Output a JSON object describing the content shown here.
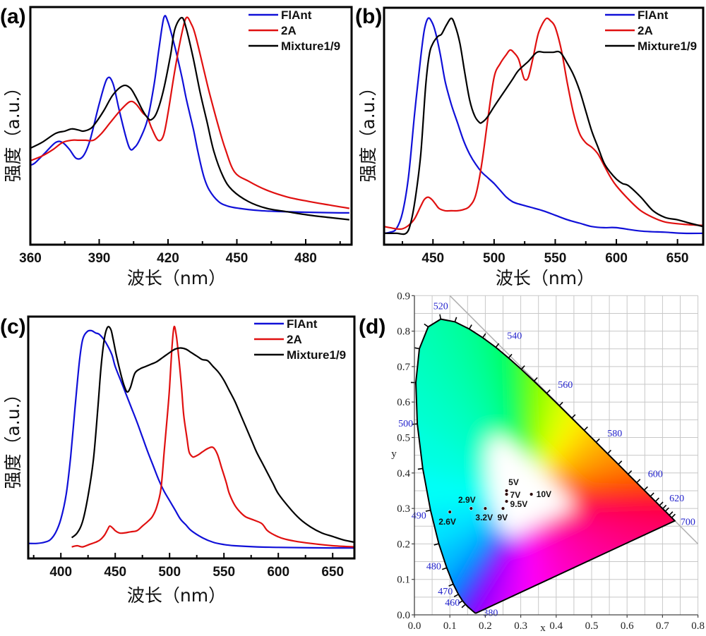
{
  "chart_data": [
    {
      "id": "a",
      "panel_label": "(a)",
      "type": "line",
      "title": "",
      "xlabel": "波长（nm）",
      "ylabel": "强度（a.u.）",
      "xlim": [
        360,
        500
      ],
      "ylim": [
        0,
        1.05
      ],
      "xticks": [
        360,
        390,
        420,
        450,
        480
      ],
      "xminor_step": 15,
      "yticks": [],
      "grid": false,
      "legend_position": "top-right",
      "series": [
        {
          "name": "FlAnt",
          "color": "#1010d8",
          "x": [
            360,
            362,
            366,
            371,
            374,
            377,
            380,
            383,
            386,
            390,
            393.4,
            396,
            399,
            403,
            405.6,
            408,
            411,
            414,
            416,
            418.2,
            420,
            423,
            426,
            428,
            431,
            433,
            435.6,
            438,
            442,
            446,
            451,
            460,
            469,
            480,
            490,
            499
          ],
          "y": [
            0.35,
            0.36,
            0.4,
            0.45,
            0.45,
            0.42,
            0.38,
            0.39,
            0.46,
            0.62,
            0.73,
            0.71,
            0.58,
            0.43,
            0.43,
            0.47,
            0.55,
            0.71,
            0.86,
            1.0,
            0.98,
            0.87,
            0.74,
            0.64,
            0.51,
            0.41,
            0.3,
            0.24,
            0.19,
            0.17,
            0.16,
            0.15,
            0.146,
            0.143,
            0.141,
            0.14
          ]
        },
        {
          "name": "2A",
          "color": "#e01010",
          "x": [
            360,
            365,
            370,
            374,
            378,
            381,
            384,
            387.5,
            391,
            395,
            400,
            403.5,
            406,
            409,
            411,
            413,
            415.7,
            418,
            420,
            423,
            426,
            428,
            430,
            432,
            435.6,
            438,
            442,
            445,
            449,
            455,
            463,
            472,
            481.5,
            490,
            499
          ],
          "y": [
            0.37,
            0.39,
            0.42,
            0.45,
            0.46,
            0.46,
            0.46,
            0.46,
            0.49,
            0.54,
            0.6,
            0.63,
            0.62,
            0.58,
            0.56,
            0.51,
            0.46,
            0.48,
            0.58,
            0.77,
            0.93,
            1.0,
            0.975,
            0.92,
            0.77,
            0.67,
            0.52,
            0.42,
            0.32,
            0.28,
            0.24,
            0.21,
            0.19,
            0.175,
            0.16
          ]
        },
        {
          "name": "Mixture1/9",
          "color": "#000000",
          "x": [
            360,
            365,
            371,
            375,
            378,
            381,
            383,
            386,
            388,
            392,
            396,
            400.4,
            403.5,
            406,
            409,
            411,
            412.6,
            415,
            418,
            421,
            423,
            426,
            428,
            431,
            434,
            437,
            440,
            444,
            448,
            455,
            463,
            472,
            481.5,
            490,
            499
          ],
          "y": [
            0.425,
            0.45,
            0.49,
            0.5,
            0.51,
            0.505,
            0.5,
            0.51,
            0.53,
            0.59,
            0.66,
            0.7,
            0.69,
            0.65,
            0.59,
            0.56,
            0.55,
            0.58,
            0.68,
            0.83,
            0.95,
            1.0,
            0.95,
            0.82,
            0.67,
            0.54,
            0.41,
            0.3,
            0.24,
            0.19,
            0.16,
            0.145,
            0.13,
            0.12,
            0.11
          ]
        }
      ]
    },
    {
      "id": "b",
      "panel_label": "(b)",
      "type": "line",
      "title": "",
      "xlabel": "波长（nm）",
      "ylabel": "强度（a.u.）",
      "xlim": [
        410,
        671
      ],
      "ylim": [
        0,
        1.05
      ],
      "xticks": [
        450,
        500,
        550,
        600,
        650
      ],
      "xminor_step": 25,
      "yticks": [],
      "grid": false,
      "legend_position": "top-right",
      "series": [
        {
          "name": "FlAnt",
          "color": "#1010d8",
          "x": [
            410,
            415,
            420,
            425,
            430,
            435,
            440,
            443,
            446,
            449,
            452,
            456,
            460,
            465,
            470,
            475,
            480,
            485,
            490,
            495,
            500,
            505,
            510,
            515,
            520,
            530,
            540,
            550,
            560,
            570,
            580,
            590,
            600,
            620,
            640,
            655,
            671
          ],
          "y": [
            0.05,
            0.055,
            0.07,
            0.14,
            0.3,
            0.58,
            0.83,
            0.95,
            1.0,
            0.985,
            0.94,
            0.84,
            0.72,
            0.62,
            0.54,
            0.46,
            0.4,
            0.355,
            0.32,
            0.295,
            0.27,
            0.24,
            0.21,
            0.19,
            0.18,
            0.165,
            0.15,
            0.13,
            0.11,
            0.095,
            0.08,
            0.075,
            0.075,
            0.06,
            0.055,
            0.05,
            0.05
          ]
        },
        {
          "name": "2A",
          "color": "#e01010",
          "x": [
            410,
            415,
            420,
            425,
            430,
            435,
            440,
            443,
            446,
            449,
            452,
            455,
            460,
            465,
            470,
            475,
            480,
            485,
            490,
            495,
            500,
            505,
            510,
            513,
            516,
            520,
            523,
            525,
            528,
            532,
            536,
            540,
            543,
            546,
            550,
            555,
            560,
            565,
            570,
            575,
            580,
            585,
            590,
            595,
            600,
            610,
            620,
            630,
            640,
            655,
            671
          ],
          "y": [
            0.08,
            0.075,
            0.07,
            0.07,
            0.085,
            0.115,
            0.17,
            0.2,
            0.21,
            0.2,
            0.18,
            0.16,
            0.15,
            0.15,
            0.15,
            0.155,
            0.17,
            0.22,
            0.36,
            0.56,
            0.74,
            0.8,
            0.84,
            0.86,
            0.85,
            0.82,
            0.76,
            0.73,
            0.74,
            0.83,
            0.93,
            0.98,
            1.0,
            0.99,
            0.96,
            0.86,
            0.71,
            0.58,
            0.49,
            0.45,
            0.43,
            0.4,
            0.35,
            0.3,
            0.26,
            0.2,
            0.15,
            0.12,
            0.1,
            0.09,
            0.085
          ]
        },
        {
          "name": "Mixture1/9",
          "color": "#000000",
          "x": [
            410,
            420,
            428,
            432,
            436,
            440,
            444,
            447,
            450,
            454,
            457,
            461,
            465,
            468,
            472,
            476,
            480,
            484,
            488,
            490,
            494,
            500,
            505,
            510,
            515,
            520,
            528,
            535,
            541,
            548,
            554,
            560,
            565,
            570,
            575,
            580,
            585,
            590,
            595,
            600,
            605,
            610,
            620,
            630,
            640,
            650,
            660,
            671
          ],
          "y": [
            0.05,
            0.05,
            0.05,
            0.1,
            0.22,
            0.4,
            0.7,
            0.84,
            0.89,
            0.92,
            0.93,
            0.97,
            1.0,
            0.97,
            0.89,
            0.76,
            0.64,
            0.57,
            0.54,
            0.54,
            0.56,
            0.61,
            0.65,
            0.69,
            0.73,
            0.77,
            0.81,
            0.85,
            0.85,
            0.85,
            0.85,
            0.8,
            0.75,
            0.68,
            0.59,
            0.5,
            0.43,
            0.36,
            0.32,
            0.29,
            0.27,
            0.26,
            0.21,
            0.15,
            0.12,
            0.11,
            0.095,
            0.08
          ]
        }
      ]
    },
    {
      "id": "c",
      "panel_label": "(c)",
      "type": "line",
      "title": "",
      "xlabel": "波长（nm）",
      "ylabel": "强度（a.u.）",
      "xlim": [
        370,
        670
      ],
      "ylim": [
        0,
        1.05
      ],
      "xticks": [
        400,
        450,
        500,
        550,
        600,
        650
      ],
      "xminor_step": 25,
      "yticks": [],
      "grid": false,
      "legend_position": "top-right",
      "series": [
        {
          "name": "FlAnt",
          "color": "#1010d8",
          "x": [
            370,
            378,
            385,
            390,
            395,
            400,
            405,
            409,
            413,
            417,
            420,
            424,
            428,
            432,
            435,
            439,
            443,
            447,
            450,
            455,
            460,
            465,
            470,
            475,
            480,
            485,
            490,
            495,
            500,
            505,
            510,
            515,
            520,
            530,
            540,
            550,
            560,
            580,
            600,
            630,
            670
          ],
          "y": [
            0.065,
            0.065,
            0.07,
            0.08,
            0.11,
            0.17,
            0.28,
            0.44,
            0.65,
            0.85,
            0.945,
            0.98,
            0.985,
            0.975,
            0.97,
            0.95,
            0.92,
            0.88,
            0.83,
            0.77,
            0.71,
            0.65,
            0.59,
            0.525,
            0.46,
            0.4,
            0.34,
            0.29,
            0.25,
            0.21,
            0.17,
            0.145,
            0.12,
            0.09,
            0.07,
            0.06,
            0.055,
            0.05,
            0.048,
            0.046,
            0.045
          ]
        },
        {
          "name": "2A",
          "color": "#e01010",
          "x": [
            410,
            415,
            420,
            426,
            432,
            436,
            440,
            443,
            445,
            448,
            450,
            454,
            458,
            464,
            470,
            475,
            480,
            484,
            488,
            492,
            495,
            498,
            500,
            502,
            504,
            506,
            508,
            511,
            513,
            516,
            518,
            521,
            523,
            527,
            530,
            535,
            540,
            544,
            548,
            552,
            555,
            560,
            565,
            570,
            578,
            585,
            590,
            597,
            605,
            615,
            630,
            650,
            670
          ],
          "y": [
            0.05,
            0.055,
            0.05,
            0.06,
            0.07,
            0.08,
            0.1,
            0.125,
            0.14,
            0.13,
            0.12,
            0.11,
            0.11,
            0.115,
            0.12,
            0.14,
            0.16,
            0.18,
            0.22,
            0.3,
            0.46,
            0.62,
            0.74,
            0.9,
            1.0,
            0.97,
            0.89,
            0.74,
            0.62,
            0.52,
            0.46,
            0.44,
            0.44,
            0.45,
            0.46,
            0.475,
            0.48,
            0.45,
            0.39,
            0.33,
            0.28,
            0.23,
            0.2,
            0.18,
            0.165,
            0.15,
            0.12,
            0.1,
            0.085,
            0.075,
            0.065,
            0.055,
            0.05
          ]
        },
        {
          "name": "Mixture1/9",
          "color": "#000000",
          "x": [
            410,
            415,
            420,
            425,
            430,
            434,
            437,
            440,
            443,
            446,
            448,
            451,
            455,
            458,
            461,
            464,
            468,
            473,
            478,
            483,
            488,
            494,
            500,
            505,
            510,
            515,
            520,
            525,
            530,
            535,
            540,
            545,
            550,
            555,
            560,
            565,
            570,
            575,
            580,
            585,
            590,
            595,
            600,
            610,
            620,
            630,
            640,
            650,
            660,
            670
          ],
          "y": [
            0.09,
            0.11,
            0.16,
            0.27,
            0.43,
            0.65,
            0.83,
            0.95,
            1.0,
            0.99,
            0.95,
            0.88,
            0.8,
            0.75,
            0.72,
            0.74,
            0.8,
            0.82,
            0.83,
            0.84,
            0.85,
            0.87,
            0.89,
            0.905,
            0.91,
            0.905,
            0.89,
            0.875,
            0.86,
            0.855,
            0.83,
            0.805,
            0.77,
            0.725,
            0.68,
            0.625,
            0.57,
            0.515,
            0.46,
            0.415,
            0.37,
            0.325,
            0.28,
            0.22,
            0.17,
            0.135,
            0.11,
            0.095,
            0.08,
            0.07
          ]
        }
      ]
    },
    {
      "id": "d",
      "panel_label": "(d)",
      "type": "scatter",
      "title": "",
      "xlabel": "x",
      "ylabel": "y",
      "xlim": [
        0.0,
        0.8
      ],
      "ylim": [
        0.0,
        0.9
      ],
      "xticks": [
        0.0,
        0.1,
        0.2,
        0.3,
        0.4,
        0.5,
        0.6,
        0.7,
        0.8
      ],
      "yticks": [
        0.0,
        0.1,
        0.2,
        0.3,
        0.4,
        0.5,
        0.6,
        0.7,
        0.8,
        0.9
      ],
      "xtick_labels": [
        "0.0",
        "0.1",
        "0.2",
        "0.3",
        "0.4",
        "0.5",
        "0.6",
        "0.7",
        "0.8"
      ],
      "ytick_labels": [
        "0.0",
        "0.1",
        "0.2",
        "0.3",
        "0.4",
        "0.5",
        "0.6",
        "0.7",
        "0.8",
        "0.9"
      ],
      "grid": true,
      "grid_step": 0.05,
      "background": "CIE 1931 chromaticity diagram",
      "wavelength_labels": [
        "380",
        "460",
        "470",
        "480",
        "490",
        "500",
        "520",
        "540",
        "560",
        "580",
        "600",
        "620",
        "700"
      ],
      "points": [
        {
          "label": "2.6V",
          "x": 0.1,
          "y": 0.29
        },
        {
          "label": "2.9V",
          "x": 0.16,
          "y": 0.3
        },
        {
          "label": "3.2V",
          "x": 0.2,
          "y": 0.3
        },
        {
          "label": "9V",
          "x": 0.25,
          "y": 0.3
        },
        {
          "label": "5V",
          "x": 0.26,
          "y": 0.35
        },
        {
          "label": "7V",
          "x": 0.26,
          "y": 0.34
        },
        {
          "label": "9.5V",
          "x": 0.26,
          "y": 0.32
        },
        {
          "label": "10V",
          "x": 0.33,
          "y": 0.34
        }
      ]
    }
  ]
}
